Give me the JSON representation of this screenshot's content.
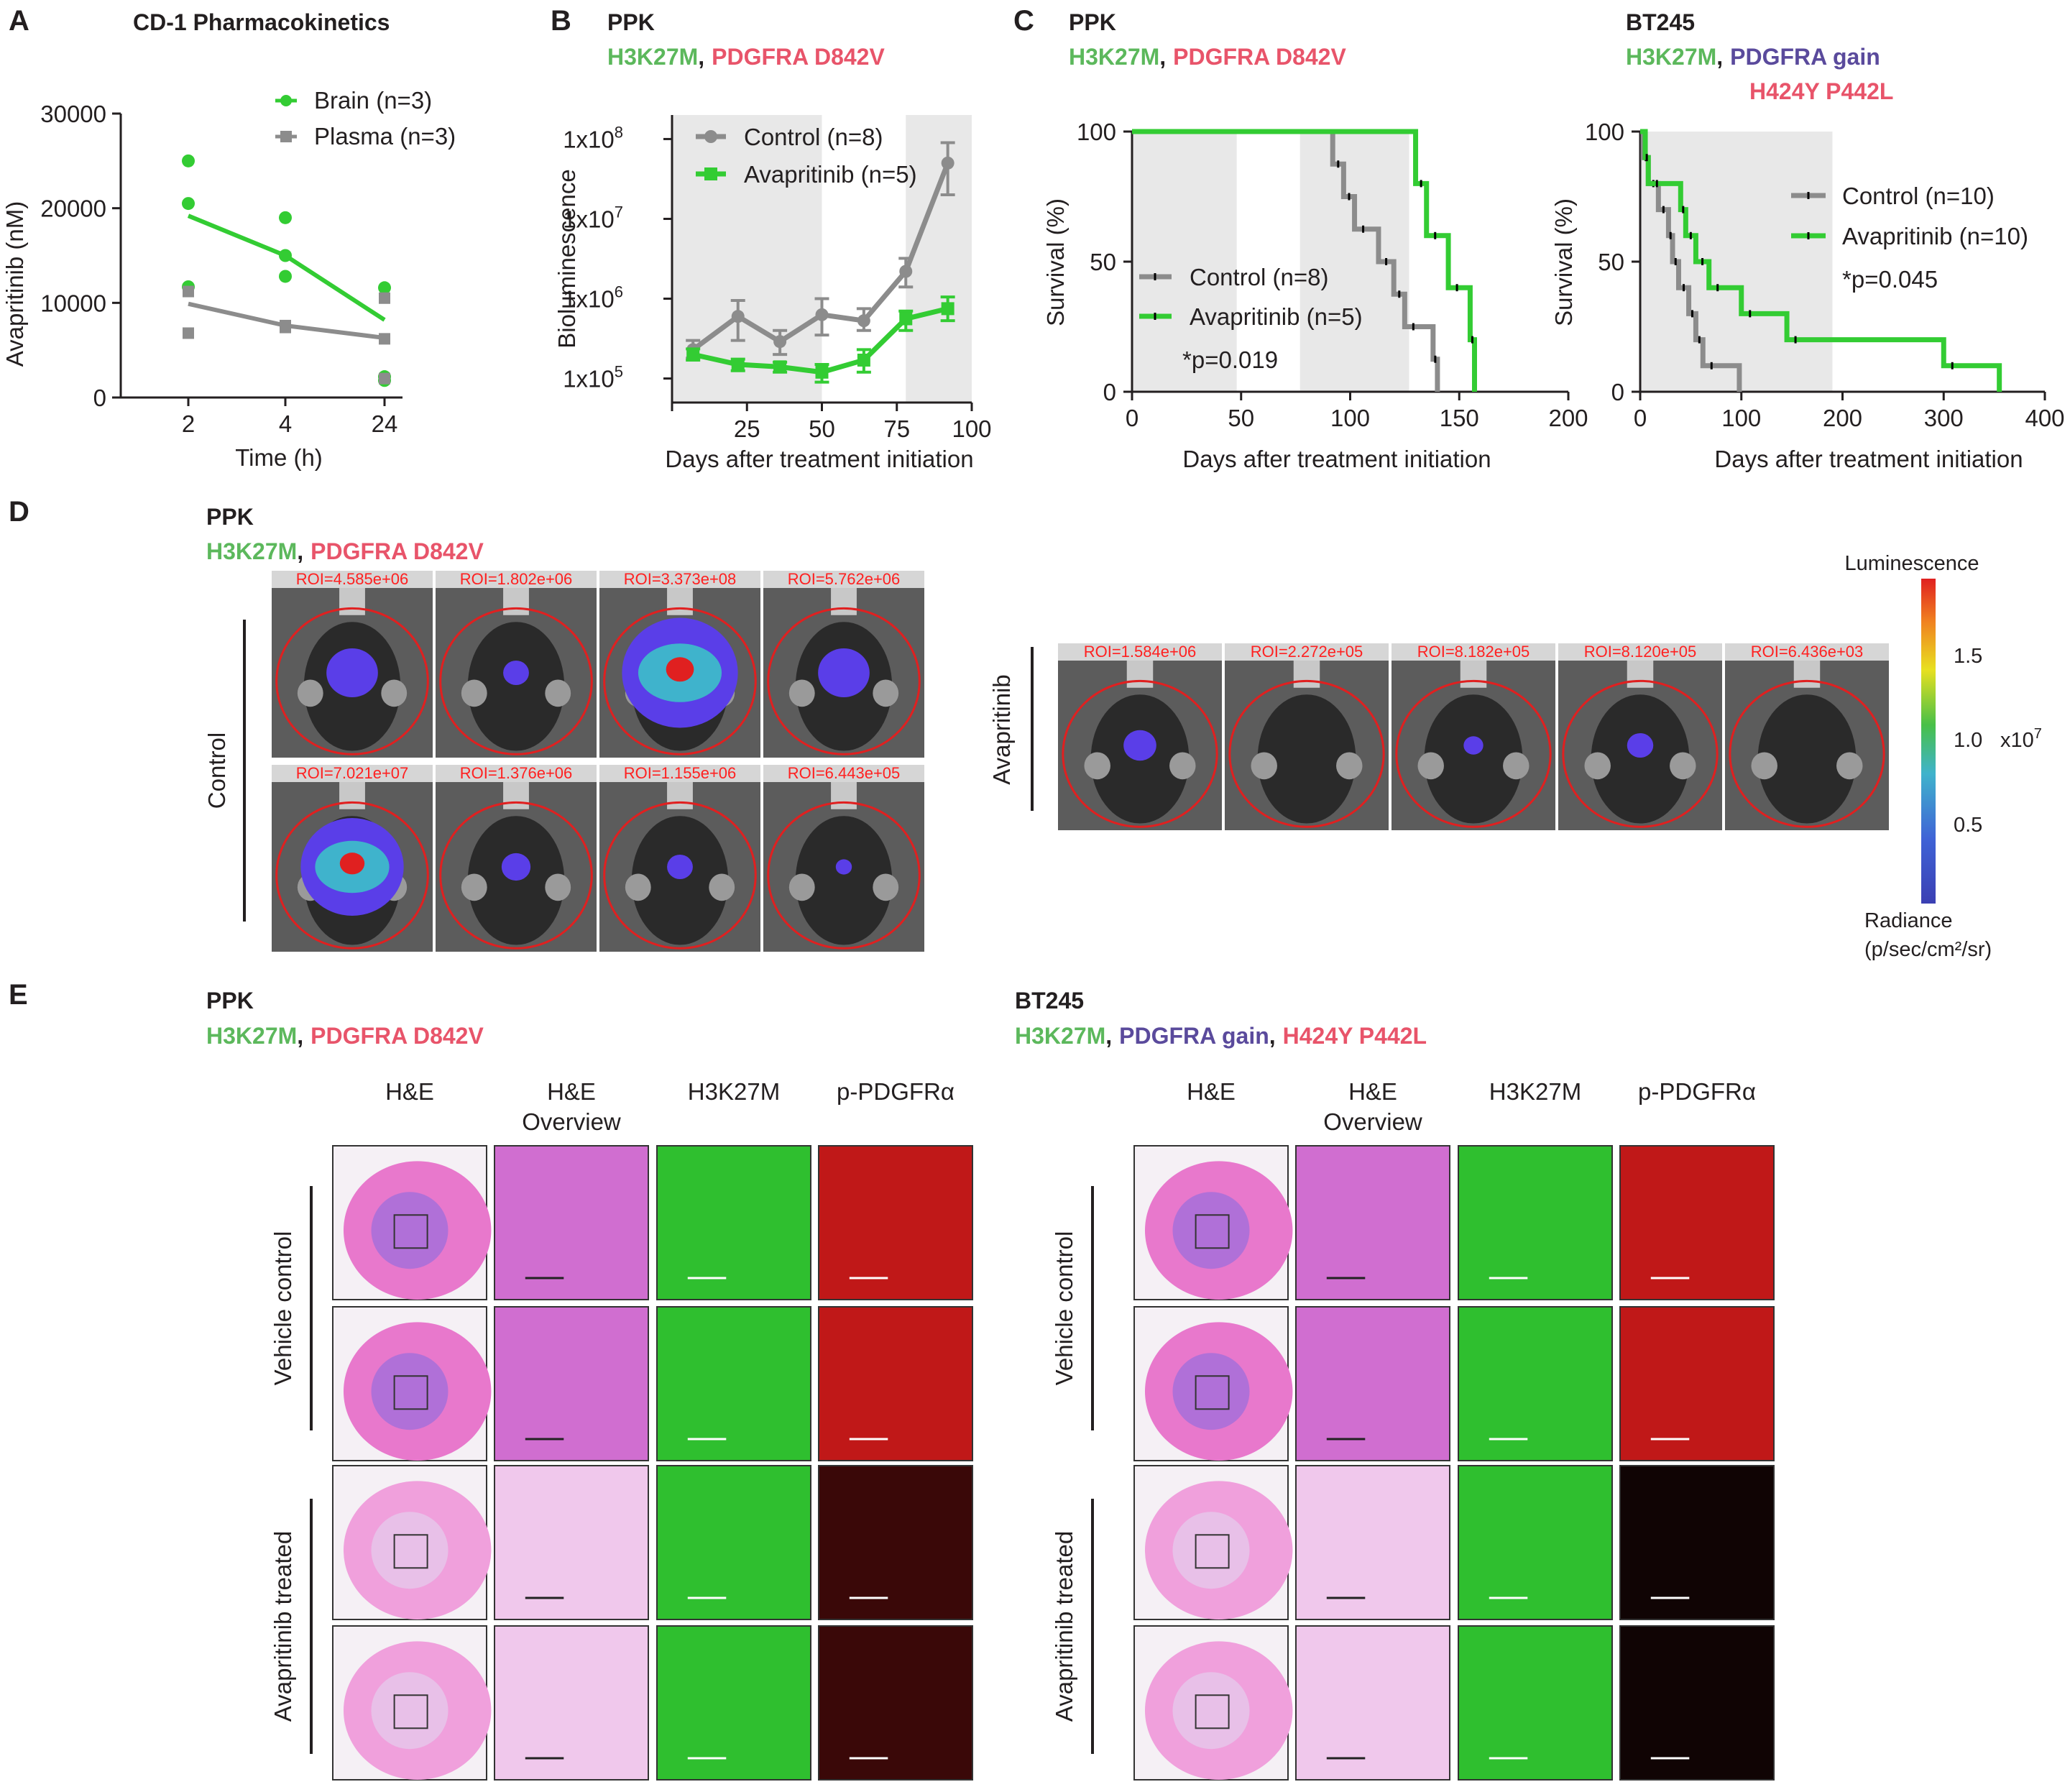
{
  "colors": {
    "green": "#33cc33",
    "gray": "#8c8c8c",
    "shade": "#e8e8e8",
    "label_green": "#5cb85c",
    "label_red": "#e8546a",
    "label_purple": "#5a4a9c",
    "roi_red": "#ff2020"
  },
  "panel_labels": {
    "a": "A",
    "b": "B",
    "c": "C",
    "d": "D",
    "e": "E"
  },
  "model_ppk": {
    "name": "PPK",
    "mut1": "H3K27M",
    "sep": ",",
    "mut2": "PDGFRA D842V"
  },
  "model_bt245": {
    "name": "BT245",
    "mut1": "H3K27M",
    "sep": ",",
    "mut2": "PDGFRA gain",
    "mut3": "H424Y P442L"
  },
  "chart_data": [
    {
      "id": "A",
      "type": "scatter",
      "title": "CD-1 Pharmacokinetics",
      "xlabel": "Time (h)",
      "ylabel": "Avapritinib (nM)",
      "categories": [
        "2",
        "4",
        "24"
      ],
      "ylim": [
        0,
        30000
      ],
      "yticks": [
        "0",
        "10000",
        "20000",
        "30000"
      ],
      "legend_position": "top-right",
      "series": [
        {
          "name": "Brain (n=3)",
          "color": "#33cc33",
          "marker": "circle",
          "points": [
            [
              0,
              25000
            ],
            [
              0,
              20500
            ],
            [
              0,
              11700
            ],
            [
              1,
              19000
            ],
            [
              1,
              15000
            ],
            [
              1,
              12800
            ],
            [
              2,
              11600
            ],
            [
              2,
              2200
            ],
            [
              2,
              1800
            ]
          ],
          "mean": [
            19200,
            15000,
            8200
          ]
        },
        {
          "name": "Plasma (n=3)",
          "color": "#8c8c8c",
          "marker": "square",
          "points": [
            [
              0,
              11200
            ],
            [
              0,
              6800
            ],
            [
              1,
              7600
            ],
            [
              1,
              7400
            ],
            [
              2,
              10500
            ],
            [
              2,
              6200
            ],
            [
              2,
              2000
            ]
          ],
          "mean": [
            9900,
            7600,
            6300
          ]
        }
      ]
    },
    {
      "id": "B",
      "type": "line",
      "xlabel": "Days after treatment initiation",
      "ylabel": "Bioluminescence",
      "xlim": [
        0,
        100
      ],
      "xticks": [
        "25",
        "50",
        "75",
        "100"
      ],
      "yscale": "log",
      "ylim": [
        50000,
        200000000
      ],
      "yticks": [
        "1x10",
        "1x10",
        "1x10",
        "1x10"
      ],
      "ytick_exp": [
        "5",
        "6",
        "7",
        "8"
      ],
      "legend_position": "top-left",
      "shaded_x": [
        [
          0,
          50
        ],
        [
          78,
          100
        ]
      ],
      "series": [
        {
          "name": "Control (n=8)",
          "color": "#8c8c8c",
          "marker": "circle",
          "x": [
            7,
            22,
            36,
            50,
            64,
            78,
            92
          ],
          "y": [
            230000,
            600000,
            290000,
            630000,
            530000,
            2200000,
            50000000
          ],
          "err": [
            [
              180000,
              300000
            ],
            [
              300000,
              950000
            ],
            [
              200000,
              400000
            ],
            [
              350000,
              1000000
            ],
            [
              400000,
              750000
            ],
            [
              1400000,
              3200000
            ],
            [
              20000000,
              90000000
            ]
          ]
        },
        {
          "name": "Avapritinib (n=5)",
          "color": "#33cc33",
          "marker": "square",
          "x": [
            7,
            22,
            36,
            50,
            64,
            78,
            92
          ],
          "y": [
            200000,
            150000,
            140000,
            120000,
            170000,
            560000,
            750000
          ],
          "err": [
            [
              170000,
              235000
            ],
            [
              125000,
              175000
            ],
            [
              120000,
              160000
            ],
            [
              90000,
              150000
            ],
            [
              120000,
              230000
            ],
            [
              400000,
              700000
            ],
            [
              530000,
              1050000
            ]
          ]
        }
      ]
    },
    {
      "id": "C-PPK",
      "type": "line",
      "xlabel": "Days after treatment initiation",
      "ylabel": "Survival (%)",
      "xlim": [
        0,
        200
      ],
      "xticks": [
        "0",
        "50",
        "100",
        "150",
        "200"
      ],
      "ylim": [
        0,
        100
      ],
      "yticks": [
        "0",
        "50",
        "100"
      ],
      "legend_position": "bottom-left",
      "shaded_x": [
        [
          0,
          48
        ],
        [
          77,
          127
        ]
      ],
      "annotation": "*p=0.019",
      "series": [
        {
          "name": "Control (n=8)",
          "color": "#8c8c8c",
          "steps": [
            [
              0,
              100
            ],
            [
              92,
              100
            ],
            [
              92,
              87.5
            ],
            [
              97,
              87.5
            ],
            [
              97,
              75
            ],
            [
              102,
              75
            ],
            [
              102,
              62.5
            ],
            [
              113,
              62.5
            ],
            [
              113,
              50
            ],
            [
              120,
              50
            ],
            [
              120,
              37.5
            ],
            [
              125,
              37.5
            ],
            [
              125,
              25
            ],
            [
              138,
              25
            ],
            [
              138,
              12.5
            ],
            [
              140,
              12.5
            ],
            [
              140,
              0
            ]
          ]
        },
        {
          "name": "Avapritinib (n=5)",
          "color": "#33cc33",
          "steps": [
            [
              0,
              100
            ],
            [
              130,
              100
            ],
            [
              130,
              80
            ],
            [
              135,
              80
            ],
            [
              135,
              60
            ],
            [
              145,
              60
            ],
            [
              145,
              40
            ],
            [
              155,
              40
            ],
            [
              155,
              20
            ],
            [
              157,
              20
            ],
            [
              157,
              0
            ]
          ]
        }
      ]
    },
    {
      "id": "C-BT245",
      "type": "line",
      "xlabel": "Days after treatment initiation",
      "ylabel": "Survival (%)",
      "xlim": [
        0,
        400
      ],
      "xticks": [
        "0",
        "100",
        "200",
        "300",
        "400"
      ],
      "ylim": [
        0,
        100
      ],
      "yticks": [
        "0",
        "50",
        "100"
      ],
      "legend_position": "top-right",
      "shaded_x": [
        [
          0,
          190
        ]
      ],
      "annotation": "*p=0.045",
      "series": [
        {
          "name": "Control (n=10)",
          "color": "#8c8c8c",
          "steps": [
            [
              0,
              100
            ],
            [
              3,
              100
            ],
            [
              3,
              90
            ],
            [
              8,
              90
            ],
            [
              8,
              80
            ],
            [
              18,
              80
            ],
            [
              18,
              70
            ],
            [
              28,
              70
            ],
            [
              28,
              60
            ],
            [
              32,
              60
            ],
            [
              32,
              50
            ],
            [
              38,
              50
            ],
            [
              38,
              40
            ],
            [
              48,
              40
            ],
            [
              48,
              30
            ],
            [
              55,
              30
            ],
            [
              55,
              20
            ],
            [
              62,
              20
            ],
            [
              62,
              10
            ],
            [
              98,
              10
            ],
            [
              98,
              0
            ]
          ]
        },
        {
          "name": "Avapritinib (n=10)",
          "color": "#33cc33",
          "steps": [
            [
              0,
              100
            ],
            [
              5,
              100
            ],
            [
              5,
              90
            ],
            [
              8,
              90
            ],
            [
              8,
              80
            ],
            [
              40,
              80
            ],
            [
              40,
              70
            ],
            [
              45,
              70
            ],
            [
              45,
              60
            ],
            [
              55,
              60
            ],
            [
              55,
              50
            ],
            [
              68,
              50
            ],
            [
              68,
              40
            ],
            [
              100,
              40
            ],
            [
              100,
              30
            ],
            [
              145,
              30
            ],
            [
              145,
              20
            ],
            [
              300,
              20
            ],
            [
              300,
              10
            ],
            [
              355,
              10
            ],
            [
              355,
              0
            ]
          ]
        }
      ]
    }
  ],
  "panel_d": {
    "control_label": "Control",
    "treated_label": "Avapritinib",
    "control_roi": [
      "ROI=4.585e+06",
      "ROI=1.802e+06",
      "ROI=3.373e+08",
      "ROI=5.762e+06",
      "ROI=7.021e+07",
      "ROI=1.376e+06",
      "ROI=1.155e+06",
      "ROI=6.443e+05"
    ],
    "treated_roi": [
      "ROI=1.584e+06",
      "ROI=2.272e+05",
      "ROI=8.182e+05",
      "ROI=8.120e+05",
      "ROI=6.436e+03"
    ],
    "colorbar": {
      "title": "Luminescence",
      "ticks": [
        "1.5",
        "1.0",
        "0.5"
      ],
      "multiplier": "x10",
      "multiplier_exp": "7",
      "unit_title": "Radiance",
      "unit": "(p/sec/cm²/sr)"
    }
  },
  "panel_e": {
    "columns": [
      "H&E",
      "H&E",
      "H3K27M",
      "p-PDGFRα"
    ],
    "column2_sub": "Overview",
    "row_groups": [
      "Vehicle control",
      "Avapritinib treated"
    ]
  }
}
